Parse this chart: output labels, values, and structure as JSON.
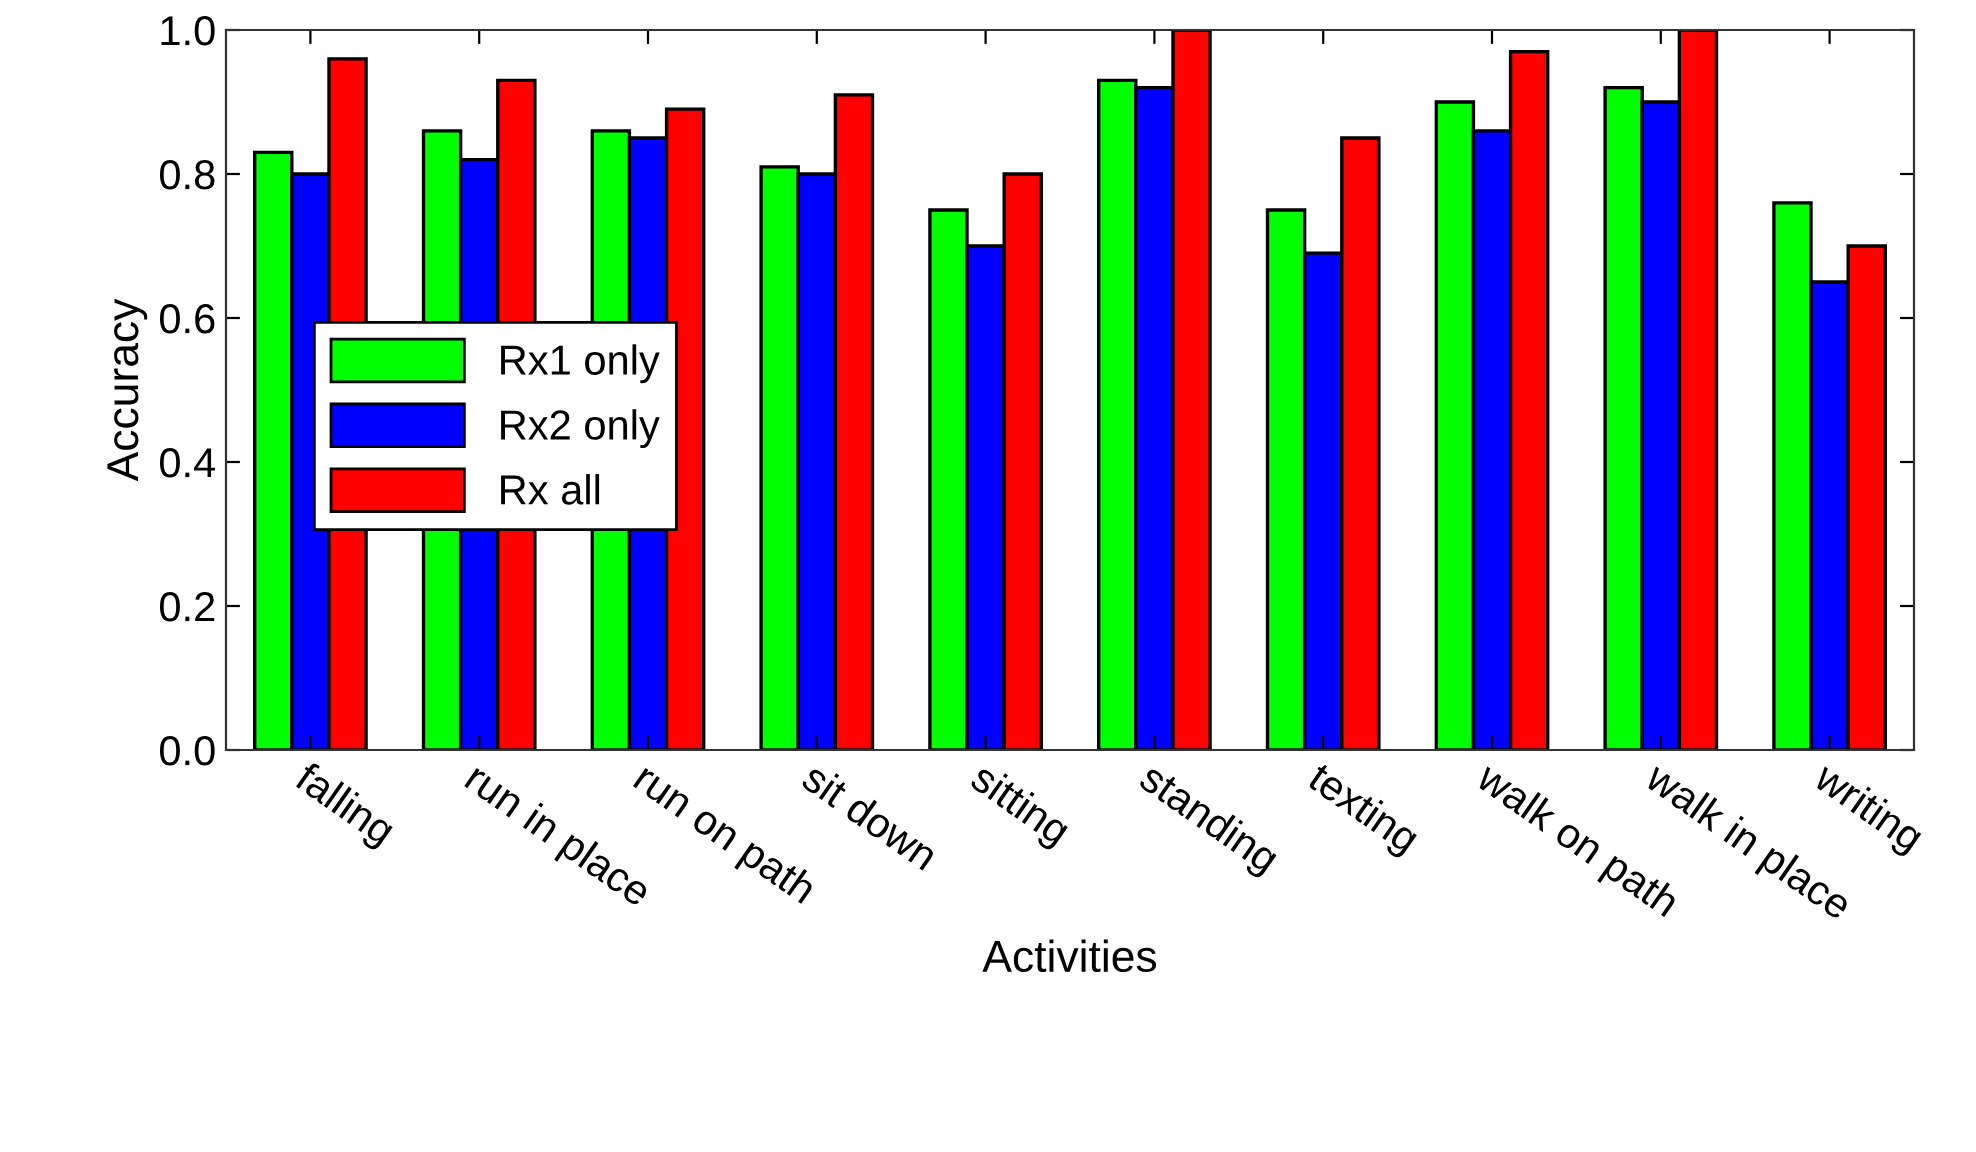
{
  "chart_data": {
    "type": "bar",
    "xlabel": "Activities",
    "ylabel": "Accuracy",
    "categories": [
      "falling",
      "run in place",
      "run on path",
      "sit down",
      "sitting",
      "standing",
      "texting",
      "walk on path",
      "walk in place",
      "writing"
    ],
    "series": [
      {
        "name": "Rx1 only",
        "color": "#00ff00",
        "values": [
          0.83,
          0.86,
          0.86,
          0.81,
          0.75,
          0.93,
          0.75,
          0.9,
          0.92,
          0.76
        ]
      },
      {
        "name": "Rx2 only",
        "color": "#0000ff",
        "values": [
          0.8,
          0.82,
          0.85,
          0.8,
          0.7,
          0.92,
          0.69,
          0.86,
          0.9,
          0.65
        ]
      },
      {
        "name": "Rx all",
        "color": "#ff0000",
        "values": [
          0.96,
          0.93,
          0.89,
          0.91,
          0.8,
          1.0,
          0.85,
          0.97,
          1.0,
          0.7
        ]
      }
    ],
    "ylim": [
      0,
      1
    ],
    "yticks": [
      {
        "value": 0,
        "label": "0.0"
      },
      {
        "value": 0.2,
        "label": "0.2"
      },
      {
        "value": 0.4,
        "label": "0.4"
      },
      {
        "value": 0.6,
        "label": "0.6"
      },
      {
        "value": 0.8,
        "label": "0.8"
      },
      {
        "value": 1,
        "label": "1.0"
      }
    ],
    "grid": false,
    "legend": "left"
  }
}
